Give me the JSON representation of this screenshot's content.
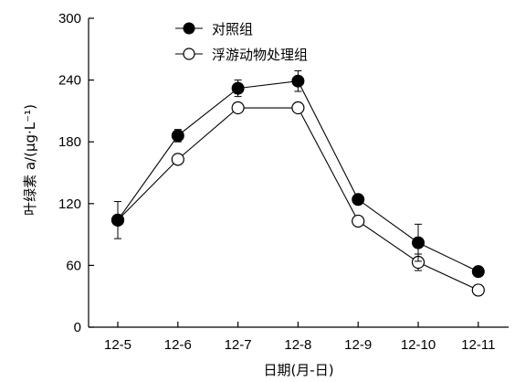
{
  "chart_data": {
    "type": "line",
    "categories": [
      "12-5",
      "12-6",
      "12-7",
      "12-8",
      "12-9",
      "12-10",
      "12-11"
    ],
    "xlabel": "日期(月-日)",
    "ylabel": "叶绿素 a/(μg·L⁻¹)",
    "ylim": [
      0,
      300
    ],
    "yticks": [
      0,
      60,
      120,
      180,
      240,
      300
    ],
    "grid": false,
    "legend": "top-left",
    "series": [
      {
        "name": "对照组",
        "marker": "filled-circle",
        "values": [
          104,
          186,
          232,
          239,
          124,
          82,
          54
        ],
        "error": [
          0,
          6,
          8,
          10,
          0,
          18,
          0
        ]
      },
      {
        "name": "浮游动物处理组",
        "marker": "open-circle",
        "values": [
          104,
          163,
          213,
          213,
          103,
          63,
          36
        ],
        "error": [
          18,
          0,
          0,
          0,
          0,
          8,
          5
        ]
      }
    ]
  }
}
